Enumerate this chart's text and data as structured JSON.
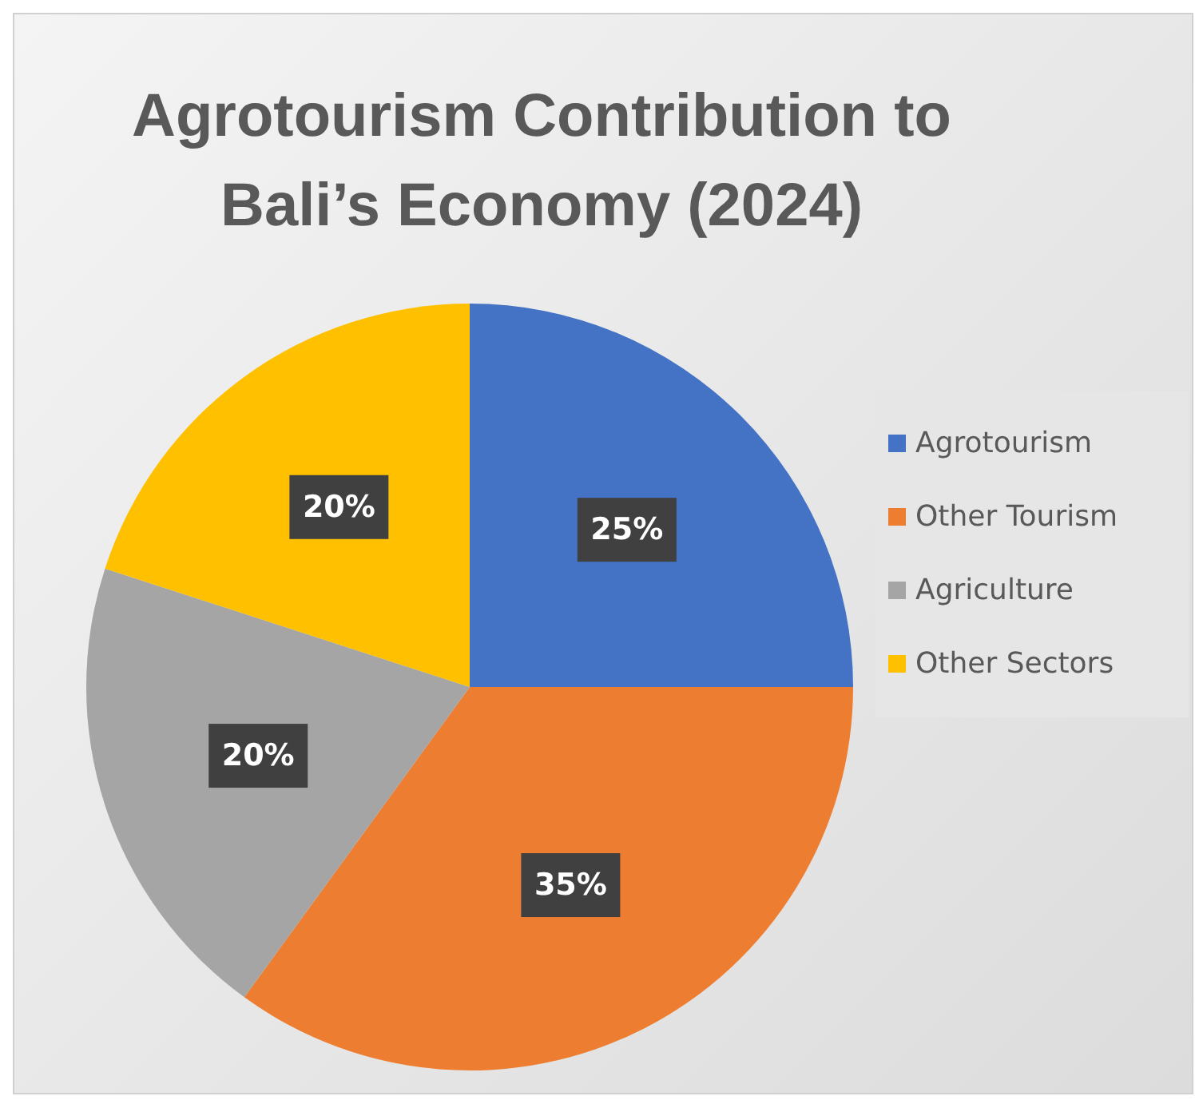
{
  "chart_data": {
    "type": "pie",
    "title": "Agrotourism Contribution to Bali’s Economy (2024)",
    "categories": [
      "Agrotourism",
      "Other Tourism",
      "Agriculture",
      "Other Sectors"
    ],
    "values": [
      25,
      35,
      20,
      20
    ],
    "colors": [
      "#4472c4",
      "#ed7d31",
      "#a5a5a5",
      "#ffc000"
    ],
    "value_labels": [
      "25%",
      "35%",
      "20%",
      "20%"
    ],
    "legend": "right"
  }
}
